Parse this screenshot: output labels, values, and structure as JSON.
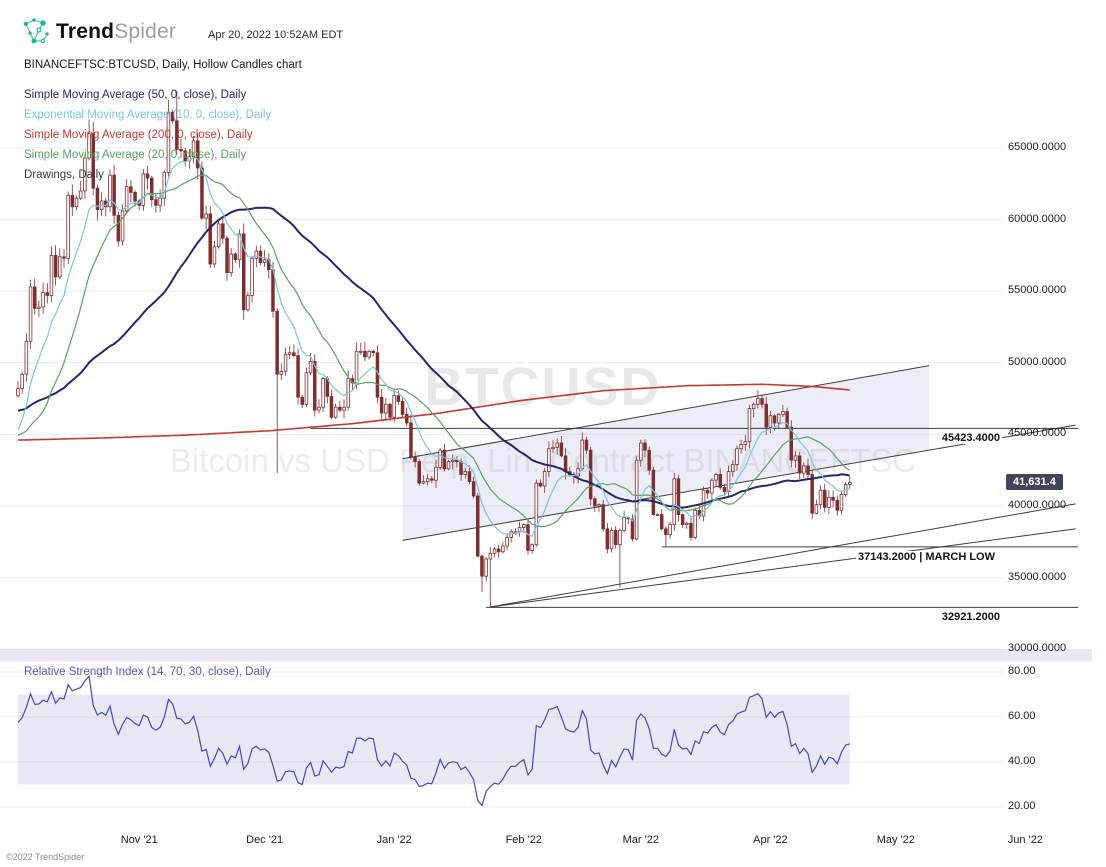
{
  "header": {
    "brand_bold": "Trend",
    "brand_light": "Spider",
    "timestamp": "Apr 20, 2022 10:52AM EDT"
  },
  "chart_title": "BINANCEFTSC:BTCUSD, Daily, Hollow Candles chart",
  "indicators": [
    {
      "label": "Simple Moving Average (50, 0, close), Daily",
      "color": "#26266e"
    },
    {
      "label": "Exponential Moving Average (10, 0, close), Daily",
      "color": "#7cc4e4"
    },
    {
      "label": "Simple Moving Average (200, 0, close), Daily",
      "color": "#c23b32"
    },
    {
      "label": "Simple Moving Average (20, 0, close), Daily",
      "color": "#58a35f"
    },
    {
      "label": "Drawings, Daily",
      "color": "#3a3a3a"
    }
  ],
  "watermark": {
    "line1": "BTCUSD",
    "line2": "Bitcoin vs USD Perp. Lin. Contract BINANCEFTSC"
  },
  "rsi_label": "Relative Strength Index (14, 70, 30, close), Daily",
  "price_badge": "41,631.4",
  "footer": "©2022 TrendSpider",
  "axis": {
    "price_ticks": [
      {
        "label": "65000.0000",
        "value": 65000
      },
      {
        "label": "60000.0000",
        "value": 60000
      },
      {
        "label": "55000.0000",
        "value": 55000
      },
      {
        "label": "50000.0000",
        "value": 50000
      },
      {
        "label": "45000.0000",
        "value": 45000
      },
      {
        "label": "40000.0000",
        "value": 40000
      },
      {
        "label": "35000.0000",
        "value": 35000
      },
      {
        "label": "30000.0000",
        "value": 30000
      }
    ],
    "rsi_ticks": [
      {
        "label": "80.00",
        "value": 80
      },
      {
        "label": "60.00",
        "value": 60
      },
      {
        "label": "40.00",
        "value": 40
      },
      {
        "label": "20.00",
        "value": 20
      }
    ],
    "months": [
      {
        "label": "Nov '21",
        "index": 29
      },
      {
        "label": "Dec '21",
        "index": 59
      },
      {
        "label": "Jan '22",
        "index": 90
      },
      {
        "label": "Feb '22",
        "index": 121
      },
      {
        "label": "Mar '22",
        "index": 149
      },
      {
        "label": "Apr '22",
        "index": 180
      },
      {
        "label": "May '22",
        "index": 210
      },
      {
        "label": "Jun '22",
        "index": 241
      }
    ]
  },
  "drawings": {
    "hlines": [
      {
        "label": "45423.4000",
        "value": 45423.4,
        "from_index": 70
      },
      {
        "label": "37143.2000 | MARCH LOW",
        "value": 37143.2,
        "from_index": 154
      },
      {
        "label": "32921.2000",
        "value": 32921.2,
        "from_index": 112
      }
    ],
    "channel": {
      "from_index": 92,
      "to_index": 218,
      "top_from": 43300,
      "top_to": 49800,
      "bottom_from": 37600,
      "bottom_to": 43900,
      "bottom_extend_to_index": 253
    },
    "trendlines": [
      {
        "from_index": 113,
        "from_price": 32950,
        "to_index": 253,
        "to_price": 40150
      },
      {
        "from_index": 113,
        "from_price": 32950,
        "to_index": 253,
        "to_price": 38400
      }
    ]
  },
  "chart_data": {
    "type": "candlestick",
    "symbol": "BTCUSD",
    "feed": "BINANCEFTSC",
    "timeframe": "Daily",
    "chart_style": "Hollow Candles",
    "start_date": "2021-10-03",
    "end_date": "2022-04-20",
    "last_price": 41631.4,
    "price_ylim": [
      29500,
      69400
    ],
    "rsi_ylim": [
      18,
      90
    ],
    "legend_position": "top-left",
    "grid": "horizontal",
    "closes": [
      48200,
      49200,
      51500,
      55300,
      53800,
      53900,
      54900,
      54700,
      57500,
      56000,
      57400,
      57300,
      61700,
      60900,
      61500,
      62000,
      64300,
      66000,
      62200,
      60700,
      61300,
      60900,
      63100,
      60300,
      58500,
      60600,
      62300,
      61900,
      61300,
      61000,
      63200,
      62900,
      61400,
      61000,
      61500,
      63300,
      67500,
      66900,
      64900,
      64800,
      64100,
      64400,
      65500,
      63600,
      60100,
      60400,
      56900,
      58100,
      59700,
      58700,
      56300,
      57600,
      57200,
      59000,
      53700,
      54700,
      57300,
      57800,
      57000,
      57200,
      56500,
      53600,
      49200,
      49400,
      50600,
      50700,
      50500,
      47600,
      47100,
      49300,
      50100,
      46700,
      46900,
      48900,
      47650,
      46200,
      46900,
      46700,
      46900,
      48900,
      48600,
      50800,
      50800,
      50400,
      50800,
      50700,
      47600,
      46500,
      47100,
      46200,
      47700,
      47300,
      46400,
      45800,
      43400,
      43100,
      41600,
      41700,
      41900,
      41800,
      42700,
      43900,
      42600,
      43100,
      43200,
      43100,
      42200,
      42400,
      41700,
      40700,
      36500,
      35100,
      36300,
      36700,
      37000,
      36800,
      37200,
      37800,
      38200,
      38200,
      38500,
      38700,
      36900,
      37300,
      41600,
      41400,
      42400,
      44000,
      44100,
      44400,
      43500,
      42400,
      42200,
      42100,
      42600,
      44600,
      43900,
      40500,
      40000,
      40100,
      38400,
      37000,
      38300,
      37300,
      38300,
      39200,
      39100,
      37700,
      43200,
      44400,
      43900,
      42500,
      39400,
      39400,
      38400,
      38000,
      38700,
      41900,
      39400,
      38700,
      38800,
      37800,
      39700,
      39300,
      41100,
      40900,
      41800,
      42200,
      41300,
      41000,
      42400,
      42900,
      44000,
      44300,
      44500,
      46800,
      47100,
      47500,
      47100,
      45500,
      46300,
      45800,
      46400,
      46600,
      45500,
      43200,
      43500,
      42300,
      42800,
      42200,
      39500,
      40100,
      41100,
      39900,
      40600,
      40400,
      39700,
      40800,
      41500,
      41631.4
    ],
    "pre_closes": [
      47100,
      47000,
      45900,
      44700,
      44700,
      46700,
      49300,
      48900,
      49300,
      49500,
      47700,
      49000,
      46900,
      49100,
      48900,
      48800,
      47000,
      47100,
      48800,
      49900,
      50000,
      49900,
      51800,
      52700,
      46800,
      46100,
      46400,
      44900,
      45200,
      46100,
      44900,
      47100,
      48100,
      47700,
      47300,
      48300,
      47200,
      43000,
      40700,
      43600,
      44900,
      42800,
      42700,
      43200,
      42200,
      41000,
      41500,
      43800,
      48200,
      47700
    ],
    "wick_overrides": {
      "17": {
        "high": 67000
      },
      "38": {
        "high": 69000
      },
      "62": {
        "low": 42300
      },
      "111": {
        "low": 34000
      },
      "113": {
        "low": 32950
      },
      "144": {
        "low": 34300
      },
      "155": {
        "low": 37150
      }
    },
    "sma200_anchors": [
      [
        0,
        44600
      ],
      [
        20,
        44750
      ],
      [
        40,
        44950
      ],
      [
        60,
        45250
      ],
      [
        80,
        45750
      ],
      [
        100,
        46450
      ],
      [
        120,
        47350
      ],
      [
        140,
        48050
      ],
      [
        160,
        48400
      ],
      [
        178,
        48500
      ],
      [
        190,
        48350
      ],
      [
        199,
        48100
      ]
    ]
  }
}
